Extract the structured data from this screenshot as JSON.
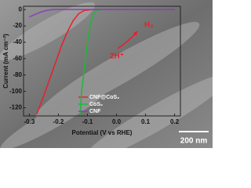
{
  "chart_data": {
    "type": "line",
    "xlabel": "Potential (V vs RHE)",
    "ylabel": "Current (mA cm⁻²)",
    "xlim": [
      -0.32,
      0.22
    ],
    "ylim": [
      -130,
      4
    ],
    "xticks": [
      -0.3,
      -0.2,
      -0.1,
      {
        "value": 0,
        "label": "0.0"
      },
      0.1,
      0.2
    ],
    "yticks": [
      0,
      -20,
      -40,
      -60,
      -80,
      -100,
      -120
    ],
    "series": [
      {
        "name": "CNF@CoS₂",
        "color": "#e8202a",
        "x": [
          -0.275,
          -0.25,
          -0.23,
          -0.21,
          -0.19,
          -0.17,
          -0.15,
          -0.13,
          -0.11,
          -0.08,
          0.2
        ],
        "values": [
          -128,
          -105,
          -85,
          -65,
          -45,
          -28,
          -14,
          -5,
          -1,
          0,
          0
        ]
      },
      {
        "name": "CoS₂",
        "color": "#1db83a",
        "x": [
          -0.125,
          -0.12,
          -0.11,
          -0.1,
          -0.09,
          -0.08,
          -0.07,
          -0.05,
          0.2
        ],
        "values": [
          -128,
          -100,
          -70,
          -40,
          -18,
          -6,
          -1,
          0,
          0
        ]
      },
      {
        "name": "CNF",
        "color": "#8a3fc0",
        "x": [
          -0.3,
          -0.28,
          -0.26,
          -0.24,
          -0.22,
          0.2
        ],
        "values": [
          -9,
          -6,
          -3,
          -1,
          0,
          0
        ]
      }
    ],
    "annotations": [
      "2H⁺",
      "H₂"
    ],
    "scale_bar": "200 nm"
  }
}
